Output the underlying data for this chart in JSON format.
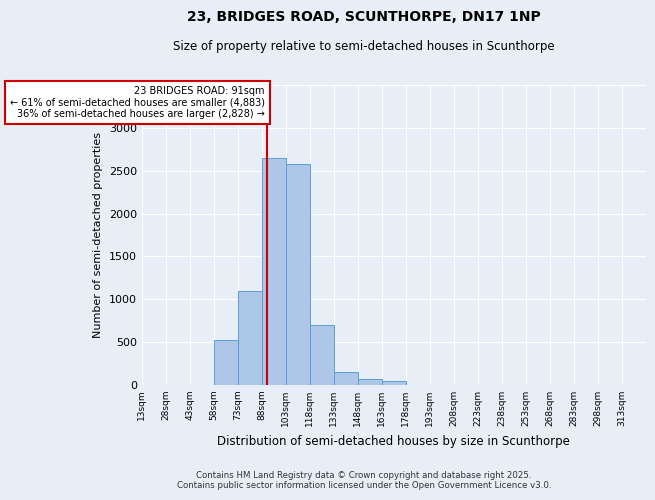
{
  "title": "23, BRIDGES ROAD, SCUNTHORPE, DN17 1NP",
  "subtitle": "Size of property relative to semi-detached houses in Scunthorpe",
  "xlabel": "Distribution of semi-detached houses by size in Scunthorpe",
  "ylabel": "Number of semi-detached properties",
  "property_size": 91,
  "annotation_line1": "23 BRIDGES ROAD: 91sqm",
  "annotation_line2": "← 61% of semi-detached houses are smaller (4,883)",
  "annotation_line3": "36% of semi-detached houses are larger (2,828) →",
  "footer_line1": "Contains HM Land Registry data © Crown copyright and database right 2025.",
  "footer_line2": "Contains public sector information licensed under the Open Government Licence v3.0.",
  "bin_labels": [
    "13sqm",
    "28sqm",
    "43sqm",
    "58sqm",
    "73sqm",
    "88sqm",
    "103sqm",
    "118sqm",
    "133sqm",
    "148sqm",
    "163sqm",
    "178sqm",
    "193sqm",
    "208sqm",
    "223sqm",
    "238sqm",
    "253sqm",
    "268sqm",
    "283sqm",
    "298sqm",
    "313sqm"
  ],
  "bin_edges": [
    13,
    28,
    43,
    58,
    73,
    88,
    103,
    118,
    133,
    148,
    163,
    178,
    193,
    208,
    223,
    238,
    253,
    268,
    283,
    298,
    313,
    328
  ],
  "bar_values": [
    0,
    0,
    0,
    530,
    1100,
    2650,
    2580,
    700,
    150,
    70,
    50,
    0,
    0,
    0,
    0,
    0,
    0,
    0,
    0,
    0,
    0
  ],
  "bar_color": "#aec6e8",
  "bar_edge_color": "#5a9fd4",
  "background_color": "#e8eef8",
  "grid_color": "#ffffff",
  "annotation_box_color": "#ffffff",
  "annotation_border_color": "#cc0000",
  "red_line_color": "#cc0000",
  "ylim": [
    0,
    3500
  ],
  "yticks": [
    0,
    500,
    1000,
    1500,
    2000,
    2500,
    3000,
    3500
  ]
}
